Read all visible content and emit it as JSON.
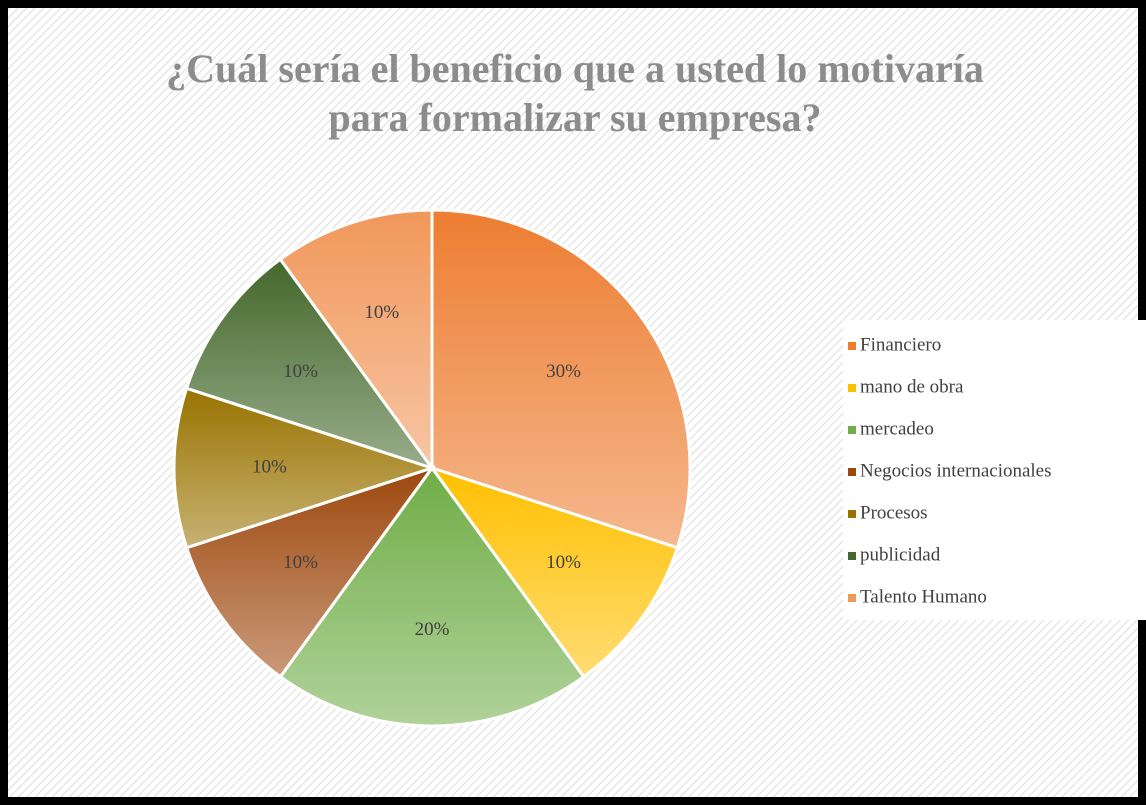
{
  "chart_data": {
    "type": "pie",
    "title": [
      "¿Cuál sería el beneficio que a usted lo motivaría",
      "para formalizar su empresa?"
    ],
    "categories": [
      "Financiero",
      "mano de obra",
      "mercadeo",
      "Negocios internacionales",
      "Procesos",
      "publicidad",
      "Talento Humano"
    ],
    "values": [
      30,
      10,
      20,
      10,
      10,
      10,
      10
    ],
    "value_labels": [
      "30%",
      "10%",
      "20%",
      "10%",
      "10%",
      "10%",
      "10%"
    ],
    "colors": [
      "#ed7d31",
      "#ffc000",
      "#70ad47",
      "#9e480e",
      "#997300",
      "#43682b",
      "#f1975a"
    ],
    "legend": "right"
  }
}
